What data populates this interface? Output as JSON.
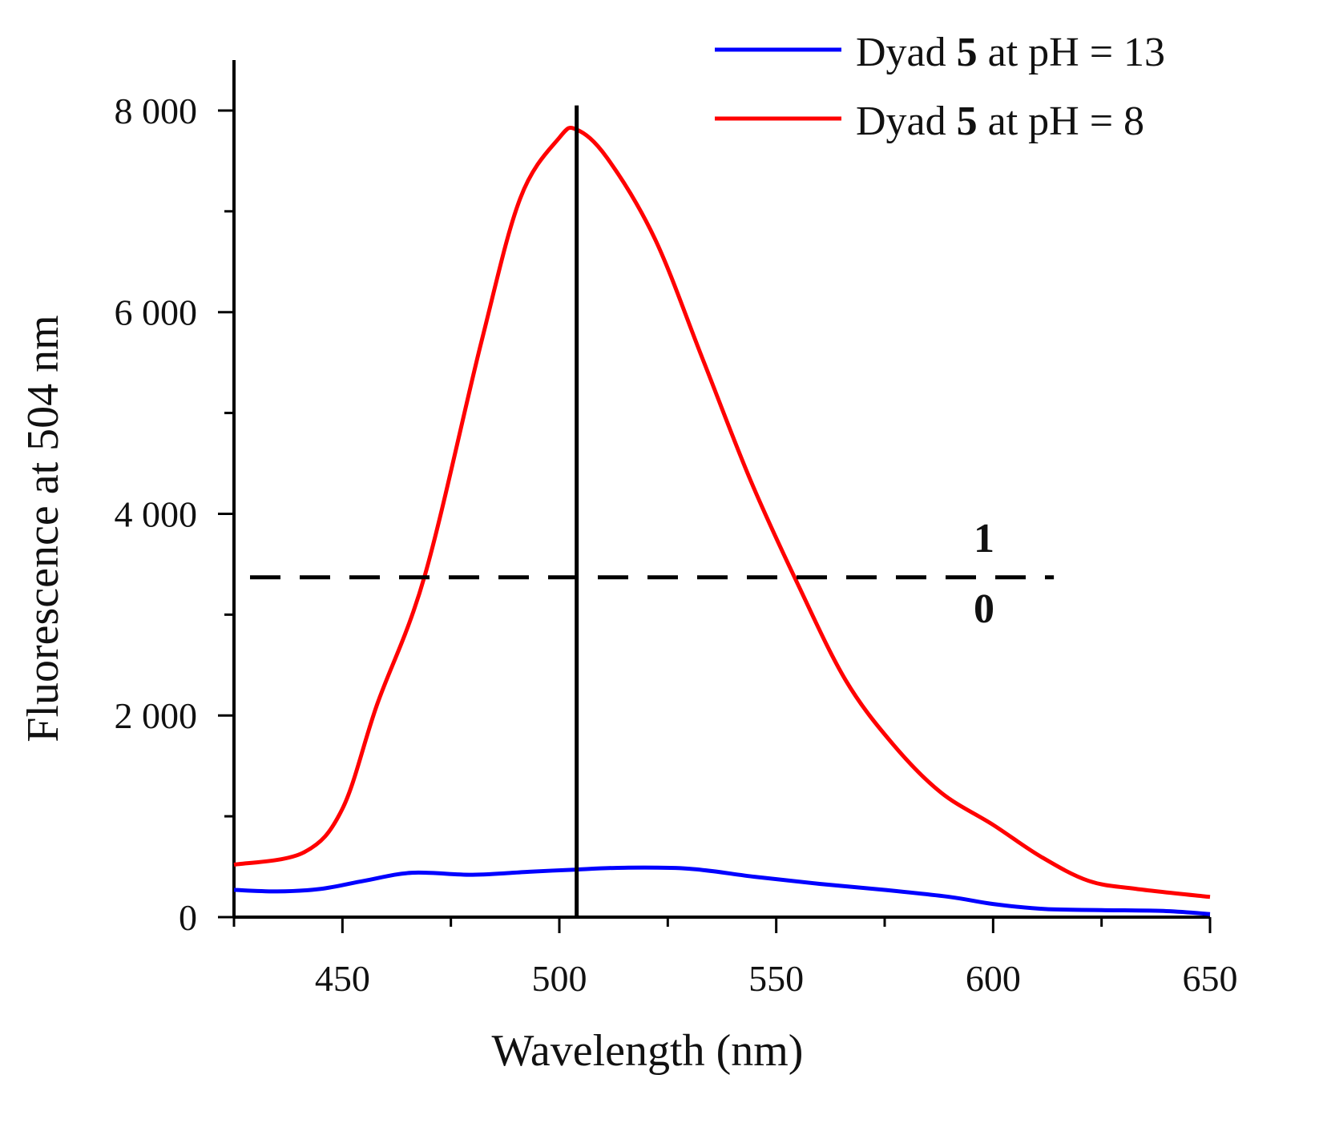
{
  "chart_data": {
    "type": "line",
    "title": "",
    "xlabel": "Wavelength (nm)",
    "ylabel": "Fluorescence at 504 nm",
    "xlim": [
      425,
      650
    ],
    "ylim": [
      0,
      8500
    ],
    "xticks": [
      450,
      500,
      550,
      600,
      650
    ],
    "xtick_labels": [
      "450",
      "500",
      "550",
      "600",
      "650"
    ],
    "yticks": [
      0,
      2000,
      4000,
      6000,
      8000
    ],
    "ytick_labels": [
      "0",
      "2 000",
      "4 000",
      "6 000",
      "8 000"
    ],
    "grid": false,
    "legend_position": "top-right",
    "series": [
      {
        "name": "Dyad 5 at pH = 13",
        "legend_prefix": "Dyad ",
        "legend_bold": "5",
        "legend_suffix": " at pH = 13",
        "color": "#0000ff",
        "x": [
          425,
          435,
          445,
          455,
          466,
          480,
          493,
          503,
          515,
          530,
          545,
          560,
          575,
          590,
          600,
          612,
          625,
          640,
          650
        ],
        "y": [
          270,
          255,
          280,
          360,
          440,
          420,
          450,
          470,
          490,
          480,
          400,
          330,
          270,
          200,
          130,
          80,
          70,
          60,
          30
        ]
      },
      {
        "name": "Dyad 5 at pH = 8",
        "legend_prefix": "Dyad ",
        "legend_bold": "5",
        "legend_suffix": " at pH = 8",
        "color": "#ff0000",
        "x": [
          425,
          441,
          450,
          458,
          469,
          482,
          491,
          500,
          504,
          511,
          522,
          533,
          544,
          555,
          566,
          577,
          588,
          600,
          611,
          622,
          633,
          650
        ],
        "y": [
          520,
          640,
          1075,
          2110,
          3390,
          5700,
          7130,
          7730,
          7810,
          7530,
          6730,
          5540,
          4340,
          3300,
          2350,
          1710,
          1235,
          915,
          600,
          360,
          280,
          200
        ]
      }
    ],
    "annotations": {
      "vertical_line_x": 504,
      "vertical_line_top": 8050,
      "threshold_y": 3370,
      "threshold_x_range": [
        425,
        614
      ],
      "label_above": "1",
      "label_below": "0"
    }
  }
}
